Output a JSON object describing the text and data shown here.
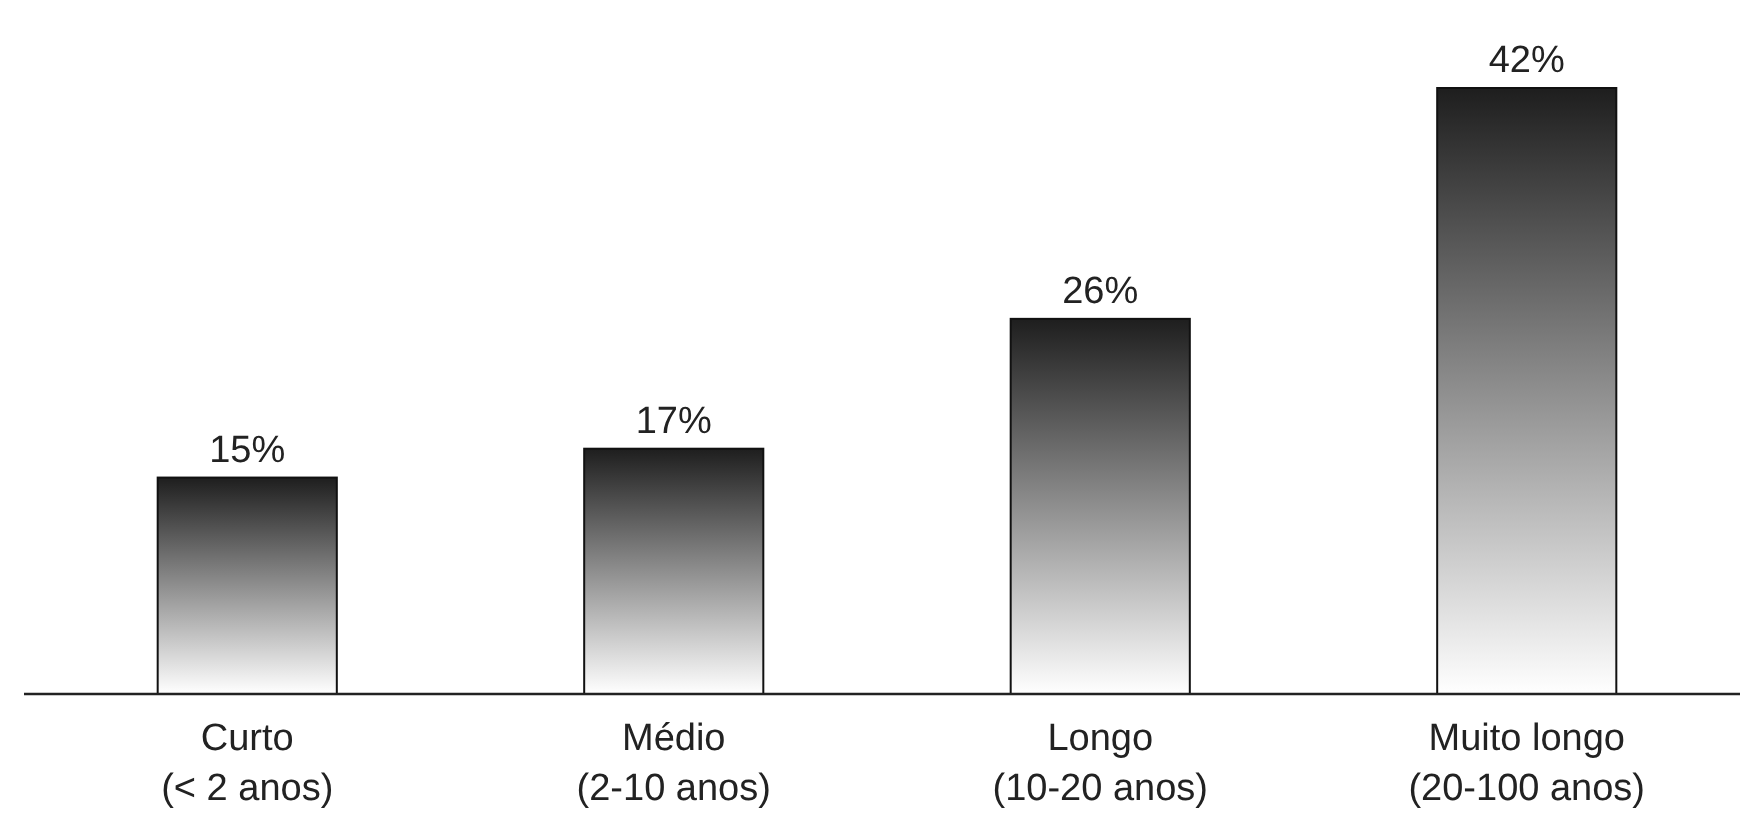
{
  "chart_data": {
    "type": "bar",
    "categories": [
      "Curto\n(< 2 anos)",
      "Médio\n(2-10 anos)",
      "Longo\n(10-20 anos)",
      "Muito longo\n(20-100 anos)"
    ],
    "values": [
      15,
      17,
      26,
      42
    ],
    "value_labels": [
      "15%",
      "17%",
      "26%",
      "42%"
    ],
    "color": "#1e1e1e",
    "tick_labels": "x"
  }
}
